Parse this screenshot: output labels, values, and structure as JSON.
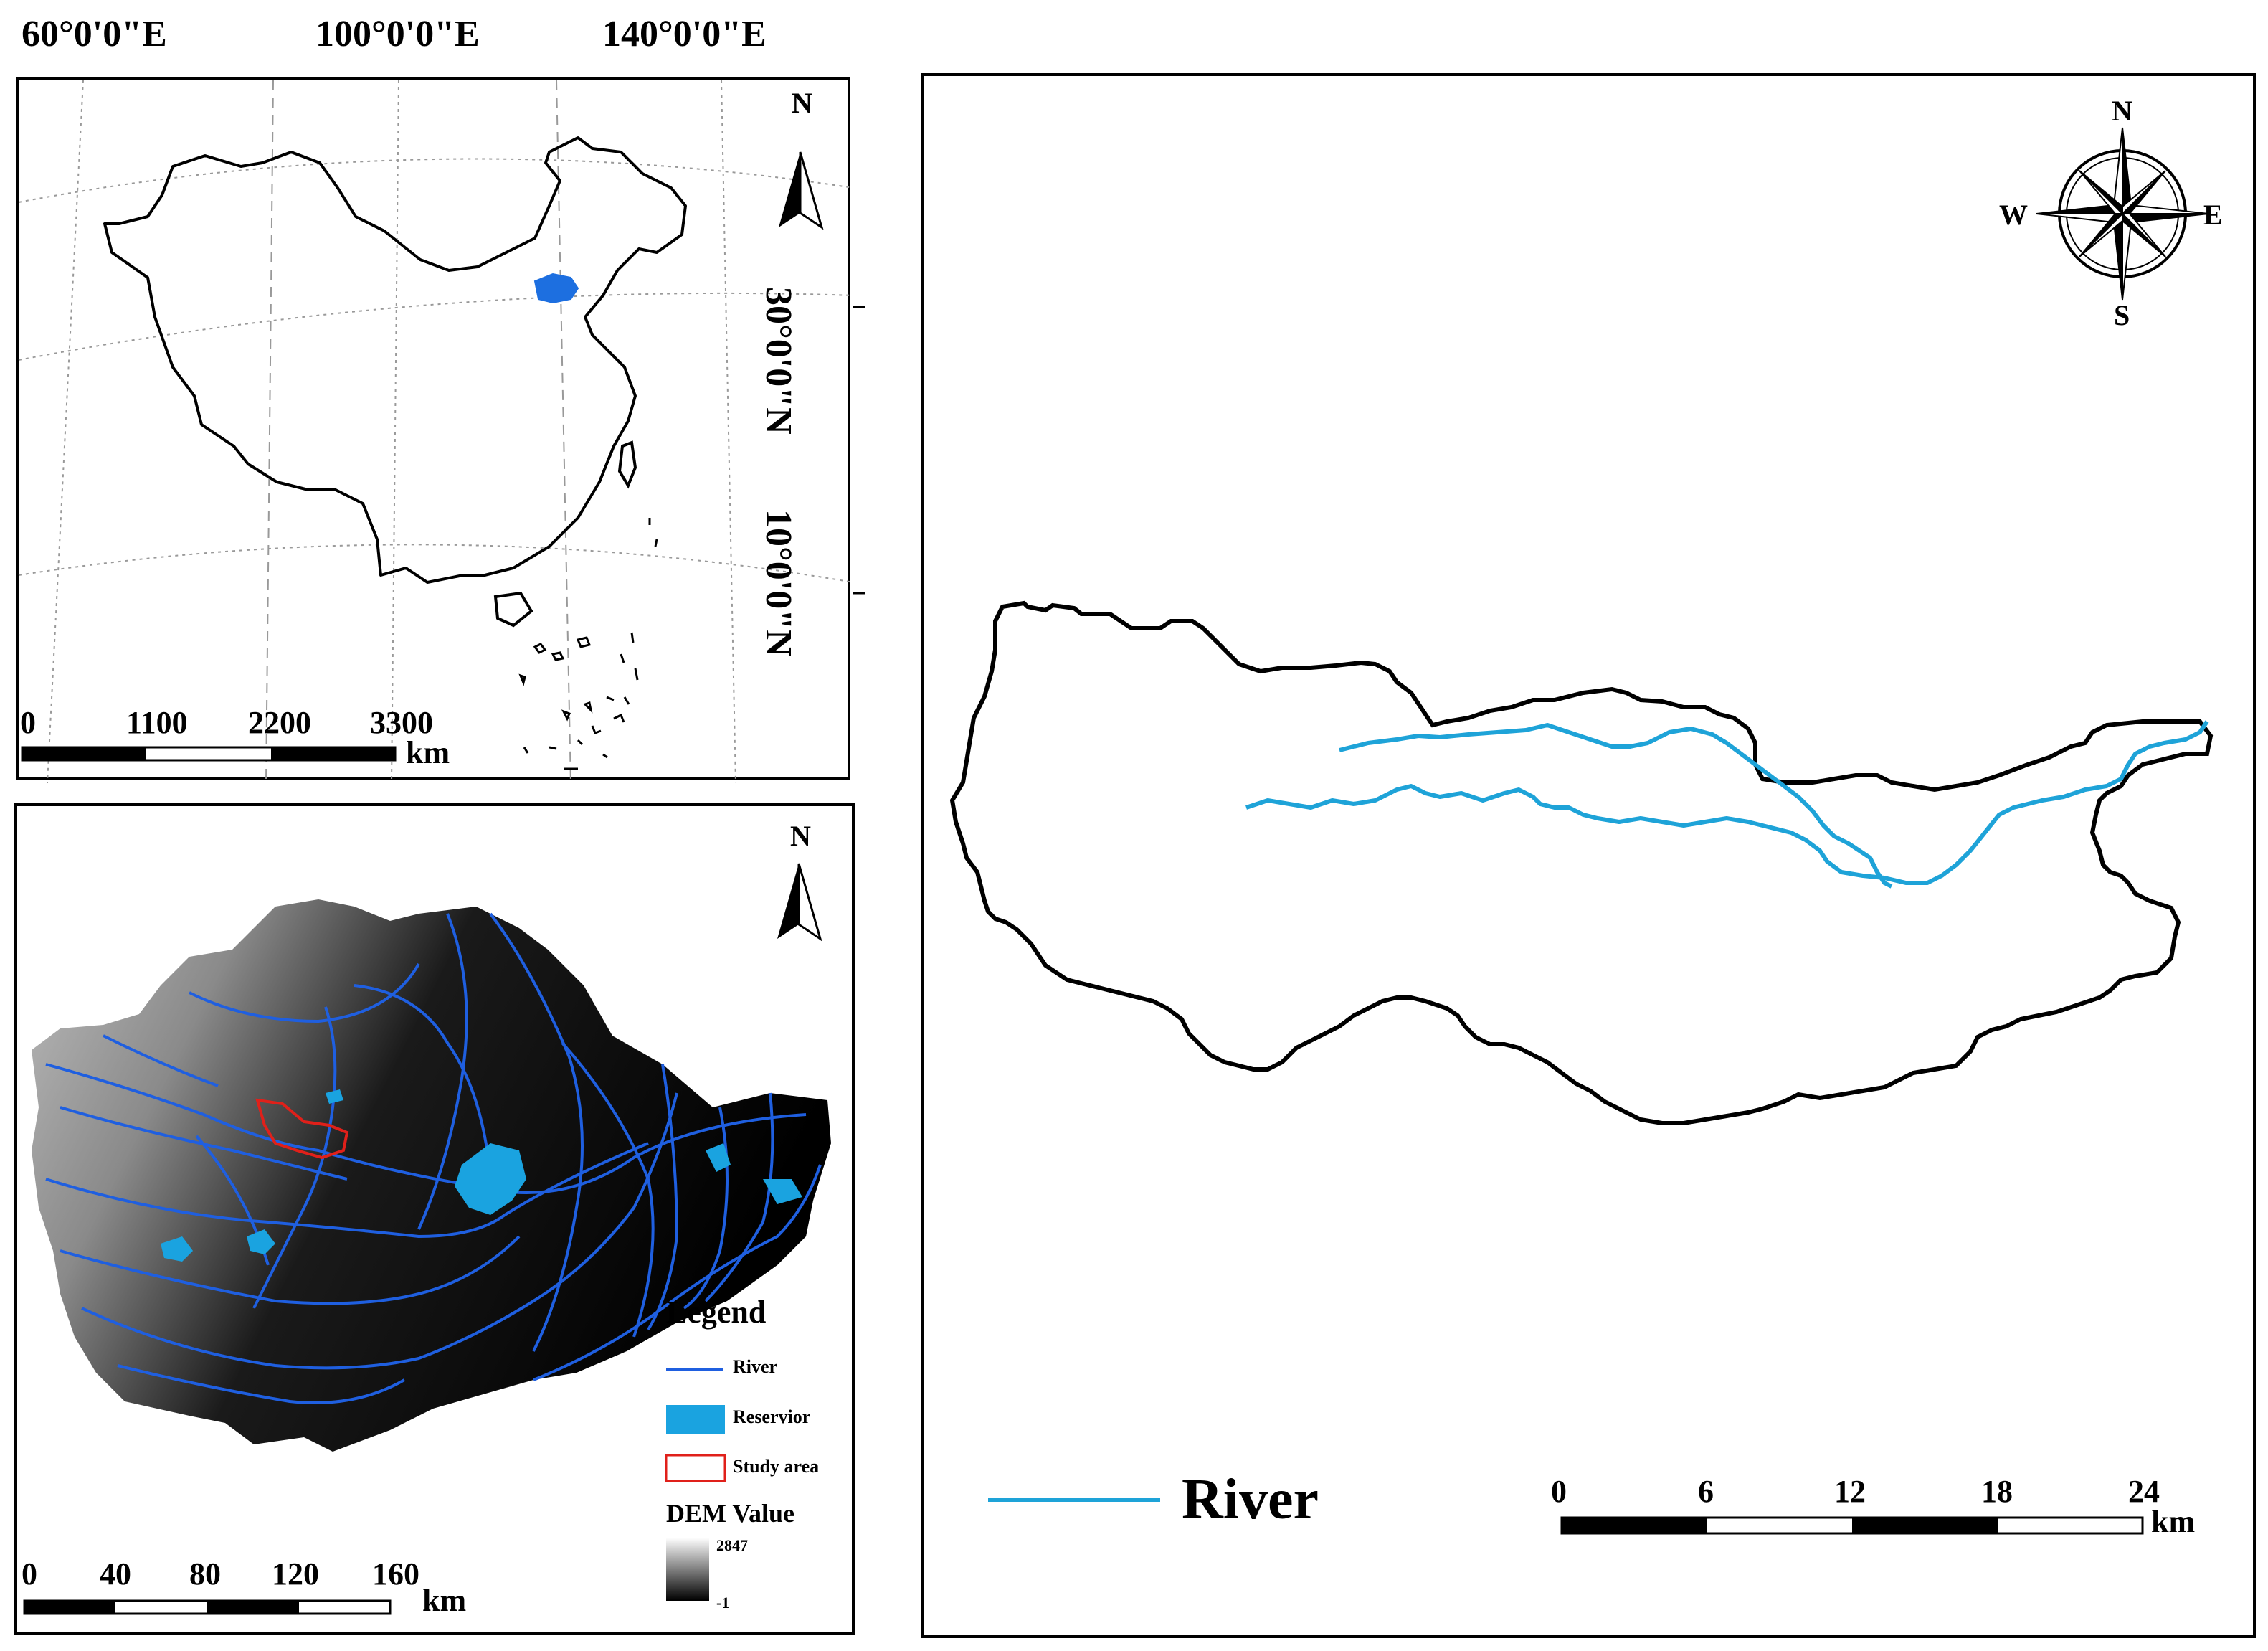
{
  "overview_map": {
    "lon_labels": [
      "60°0'0\"E",
      "100°0'0\"E",
      "140°0'0\"E"
    ],
    "lat_labels": [
      "30°0'0\"N",
      "10°0'0\"N"
    ],
    "north_label": "N",
    "scale_ticks": [
      "0",
      "1100",
      "2200",
      "3300"
    ],
    "scale_unit": "km",
    "study_area_color": "#1d6fe0"
  },
  "dem_map": {
    "north_label": "N",
    "legend_title": "Legend",
    "legend_items": [
      {
        "label": "River",
        "color": "#1f5fe0"
      },
      {
        "label": "Reservior",
        "color": "#1aa3e0"
      },
      {
        "label": "Study area",
        "color": "#e0201a"
      }
    ],
    "dem_title": "DEM Value",
    "dem_max": "2847",
    "dem_min": "-1",
    "scale_ticks": [
      "0",
      "40",
      "80",
      "120",
      "160"
    ],
    "scale_unit": "km"
  },
  "detail_map": {
    "compass": {
      "n": "N",
      "s": "S",
      "e": "E",
      "w": "W"
    },
    "legend_river_label": "River",
    "river_color": "#1ea3d8",
    "scale_ticks": [
      "0",
      "6",
      "12",
      "18",
      "24"
    ],
    "scale_unit": "km"
  }
}
